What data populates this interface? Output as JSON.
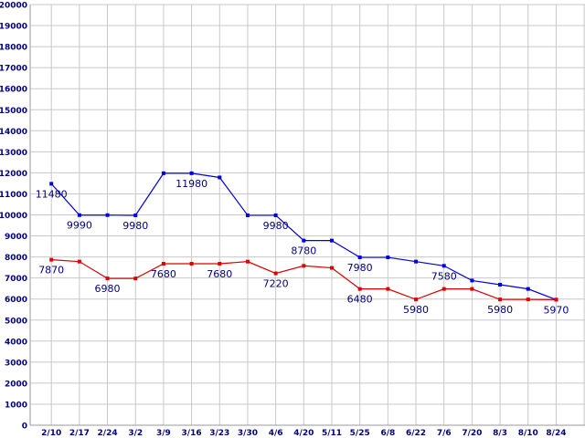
{
  "page": {
    "title": ""
  },
  "chart_data": {
    "type": "line",
    "title": "",
    "xlabel": "",
    "ylabel": "",
    "legend": "none",
    "grid": true,
    "ylim": [
      0,
      20000
    ],
    "ytick_step": 1000,
    "y_tick_labels": [
      "0",
      "1000",
      "2000",
      "3000",
      "4000",
      "5000",
      "6000",
      "7000",
      "8000",
      "9000",
      "10000",
      "11000",
      "12000",
      "13000",
      "14000",
      "15000",
      "16000",
      "17000",
      "18000",
      "19000",
      "20000"
    ],
    "categories": [
      "2/10",
      "2/17",
      "2/24",
      "3/2",
      "3/9",
      "3/16",
      "3/23",
      "3/30",
      "4/6",
      "4/20",
      "5/11",
      "5/25",
      "6/8",
      "6/22",
      "7/6",
      "7/20",
      "8/3",
      "8/10",
      "8/24"
    ],
    "series": [
      {
        "name": "upper-blue-series",
        "color": "#0000dd",
        "values": [
          11480,
          9990,
          9990,
          9980,
          11980,
          11980,
          11780,
          9980,
          9980,
          8780,
          8780,
          7980,
          7980,
          7780,
          7580,
          6880,
          6680,
          6480,
          5970
        ],
        "point_labels": [
          "11480",
          "9990",
          "",
          "9980",
          "",
          "11980",
          "",
          "",
          "9980",
          "8780",
          "",
          "7980",
          "",
          "",
          "7580",
          "",
          "",
          "",
          ""
        ]
      },
      {
        "name": "lower-red-series",
        "color": "#dd0000",
        "values": [
          7870,
          7780,
          6980,
          6980,
          7680,
          7680,
          7680,
          7780,
          7220,
          7580,
          7480,
          6480,
          6480,
          5980,
          6480,
          6480,
          5980,
          5980,
          5970
        ],
        "point_labels": [
          "7870",
          "",
          "6980",
          "",
          "7680",
          "",
          "7680",
          "",
          "7220",
          "",
          "",
          "6480",
          "",
          "5980",
          "",
          "",
          "5980",
          "",
          "5970"
        ]
      }
    ],
    "colors": {
      "background": "#ffffff",
      "grid": "#c8c8c8",
      "axis": "#9a9a9a",
      "labels": "#000080"
    }
  }
}
